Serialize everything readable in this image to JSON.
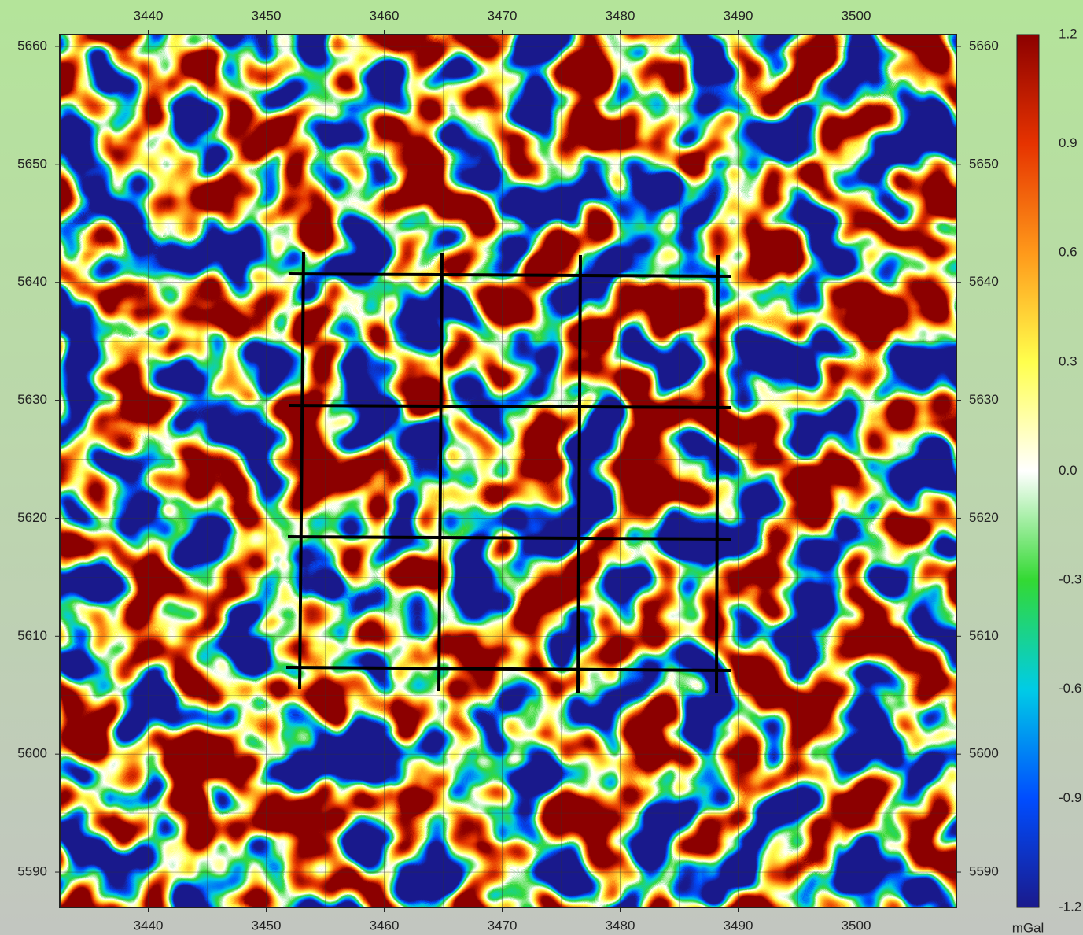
{
  "chart_data": {
    "type": "map",
    "xlim": [
      3432.5,
      3508.5
    ],
    "xticks": [
      3440,
      3450,
      3460,
      3470,
      3480,
      3490,
      3500
    ],
    "ylim": [
      5587,
      5661
    ],
    "yticks": [
      5590,
      5600,
      5610,
      5620,
      5630,
      5640,
      5650,
      5660
    ],
    "colorbar": {
      "label": "mGal",
      "lim": [
        -1.2,
        1.2
      ],
      "ticks": [
        -1.2,
        -0.9,
        -0.6,
        -0.3,
        {
          "value": 0,
          "label": "0.0"
        },
        0.3,
        0.6,
        0.9,
        1.2
      ]
    },
    "grid": true
  }
}
